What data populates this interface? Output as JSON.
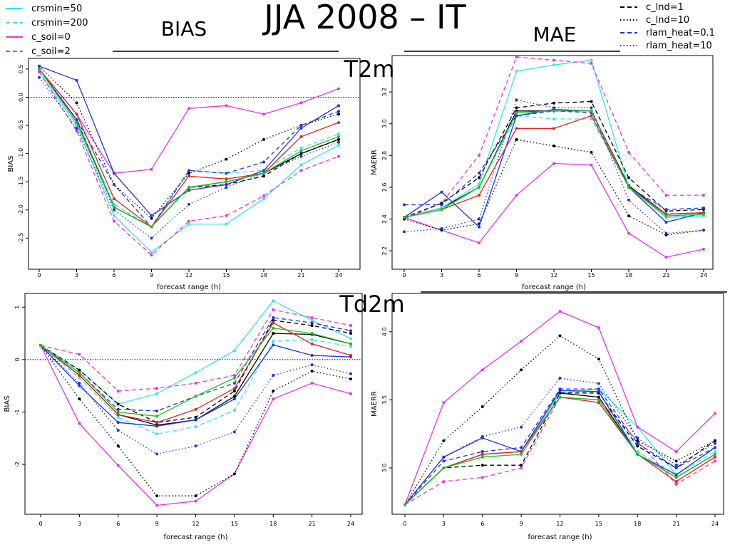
{
  "title": "JJA 2008 – IT",
  "headers": {
    "bias": "BIAS",
    "mae": "MAE"
  },
  "row_labels": [
    "T2m",
    "Td2m"
  ],
  "legend": [
    {
      "name": "crsmin=50",
      "color": "#33e6e6",
      "dash": "solid"
    },
    {
      "name": "crsmin=200",
      "color": "#33e6e6",
      "dash": "dashed"
    },
    {
      "name": "c_soil=0",
      "color": "#e633e6",
      "dash": "solid"
    },
    {
      "name": "c_soil=2",
      "color": "#e633e6",
      "dash": "dashed"
    },
    {
      "name": "c_lnd=1",
      "color": "#000000",
      "dash": "dashed"
    },
    {
      "name": "c_lnd=10",
      "color": "#000000",
      "dash": "dotted"
    },
    {
      "name": "rlam_heat=0.1",
      "color": "#1a33e6",
      "dash": "dashed"
    },
    {
      "name": "rlam_heat=10",
      "color": "#1a33e6",
      "dash": "dotted"
    }
  ],
  "chart_data": [
    {
      "type": "line",
      "xlabel": "forecast range (h)",
      "ylabel": "BIAS",
      "categories": [
        "0",
        "3",
        "6",
        "9",
        "12",
        "15",
        "18",
        "21",
        "24"
      ],
      "ylim": [
        -2.95,
        0.65
      ],
      "yticks": [
        0.5,
        {
          "value": 0,
          "label": "0.0"
        },
        -0.5,
        {
          "value": -1,
          "label": "-1.0"
        },
        -1.5,
        {
          "value": -2,
          "label": "-2.0"
        },
        -2.5
      ],
      "hline": 0,
      "series": [
        {
          "color": "#000000",
          "dash": "solid",
          "values": [
            0.5,
            -0.4,
            -1.95,
            -2.3,
            -1.6,
            -1.5,
            -1.35,
            -1.0,
            -0.75
          ]
        },
        {
          "color": "#33e6e6",
          "dash": "solid",
          "values": [
            0.45,
            -0.5,
            -2.1,
            -2.75,
            -2.25,
            -2.25,
            -1.8,
            -1.2,
            -0.85
          ]
        },
        {
          "color": "#33e6e6",
          "dash": "dashed",
          "values": [
            0.5,
            -0.4,
            -1.9,
            -2.3,
            -1.3,
            -1.35,
            -1.3,
            -0.9,
            -0.65
          ]
        },
        {
          "color": "#e633e6",
          "dash": "solid",
          "values": [
            0.5,
            -0.3,
            -1.35,
            -1.28,
            -0.2,
            -0.15,
            -0.3,
            -0.1,
            0.15
          ]
        },
        {
          "color": "#e633e6",
          "dash": "dashed",
          "values": [
            0.45,
            -0.6,
            -2.2,
            -2.8,
            -2.2,
            -2.1,
            -1.75,
            -1.3,
            -1.05
          ]
        },
        {
          "color": "#000000",
          "dash": "dashed",
          "values": [
            0.5,
            -0.45,
            -1.95,
            -2.3,
            -1.6,
            -1.55,
            -1.4,
            -1.0,
            -0.75
          ]
        },
        {
          "color": "#000000",
          "dash": "dotted",
          "values": [
            0.55,
            -0.1,
            -1.55,
            -2.15,
            -1.35,
            -1.1,
            -0.75,
            -0.5,
            -0.3
          ]
        },
        {
          "color": "#1a33e6",
          "dash": "dashed",
          "values": [
            0.5,
            -0.4,
            -1.55,
            -2.3,
            -1.3,
            -1.35,
            -1.15,
            -0.5,
            -0.25
          ]
        },
        {
          "color": "#1a33e6",
          "dash": "dotted",
          "values": [
            0.35,
            -0.55,
            -2.0,
            -2.5,
            -1.9,
            -1.6,
            -1.35,
            -1.05,
            -0.8
          ]
        },
        {
          "color": "#1a33e6",
          "dash": "solid",
          "values": [
            0.55,
            0.3,
            -1.35,
            -2.1,
            -1.65,
            -1.55,
            -1.3,
            -0.55,
            -0.15
          ]
        },
        {
          "color": "#e62020",
          "dash": "solid",
          "values": [
            0.5,
            -0.3,
            -1.8,
            -2.3,
            -1.4,
            -1.45,
            -1.35,
            -0.7,
            -0.45
          ]
        },
        {
          "color": "#20c020",
          "dash": "solid",
          "values": [
            0.5,
            -0.45,
            -1.95,
            -2.3,
            -1.6,
            -1.5,
            -1.35,
            -0.95,
            -0.7
          ]
        }
      ]
    },
    {
      "type": "line",
      "xlabel": "forecast range (h)",
      "ylabel": "MAERR",
      "categories": [
        "0",
        "3",
        "6",
        "9",
        "12",
        "15",
        "18",
        "21",
        "24"
      ],
      "ylim": [
        2.12,
        3.42
      ],
      "yticks": [
        2.2,
        2.4,
        2.6,
        2.8,
        {
          "value": 3,
          "label": "3.0"
        },
        3.2
      ],
      "series": [
        {
          "color": "#000000",
          "dash": "solid",
          "values": [
            2.41,
            2.47,
            2.6,
            3.08,
            3.08,
            3.08,
            2.61,
            2.43,
            2.44
          ]
        },
        {
          "color": "#33e6e6",
          "dash": "solid",
          "values": [
            2.41,
            2.47,
            2.62,
            3.33,
            3.37,
            3.4,
            2.6,
            2.41,
            2.42
          ]
        },
        {
          "color": "#33e6e6",
          "dash": "dashed",
          "values": [
            2.41,
            2.46,
            2.6,
            3.05,
            3.03,
            3.03,
            2.6,
            2.42,
            2.42
          ]
        },
        {
          "color": "#e633e6",
          "dash": "solid",
          "values": [
            2.41,
            2.33,
            2.25,
            2.55,
            2.75,
            2.74,
            2.31,
            2.16,
            2.21
          ]
        },
        {
          "color": "#e633e6",
          "dash": "dashed",
          "values": [
            2.4,
            2.5,
            2.8,
            3.42,
            3.4,
            3.38,
            2.82,
            2.55,
            2.55
          ]
        },
        {
          "color": "#000000",
          "dash": "dashed",
          "values": [
            2.41,
            2.5,
            2.66,
            3.1,
            3.13,
            3.14,
            2.66,
            2.45,
            2.46
          ]
        },
        {
          "color": "#000000",
          "dash": "dotted",
          "values": [
            2.4,
            2.33,
            2.37,
            2.9,
            2.86,
            2.82,
            2.42,
            2.3,
            2.33
          ]
        },
        {
          "color": "#1a33e6",
          "dash": "dashed",
          "values": [
            2.49,
            2.49,
            2.69,
            3.05,
            3.08,
            3.07,
            2.6,
            2.46,
            2.47
          ]
        },
        {
          "color": "#1a33e6",
          "dash": "dotted",
          "values": [
            2.32,
            2.34,
            2.4,
            3.15,
            3.1,
            3.1,
            2.52,
            2.31,
            2.33
          ]
        },
        {
          "color": "#1a33e6",
          "dash": "solid",
          "values": [
            2.41,
            2.57,
            2.35,
            3.05,
            3.09,
            3.08,
            2.6,
            2.38,
            2.44
          ]
        },
        {
          "color": "#e62020",
          "dash": "solid",
          "values": [
            2.41,
            2.46,
            2.55,
            2.97,
            2.97,
            3.05,
            2.6,
            2.43,
            2.44
          ]
        },
        {
          "color": "#20c020",
          "dash": "solid",
          "values": [
            2.41,
            2.46,
            2.6,
            3.07,
            3.08,
            3.08,
            2.6,
            2.42,
            2.43
          ]
        }
      ]
    },
    {
      "type": "line",
      "xlabel": "forecast range (h)",
      "ylabel": "BIAS",
      "categories": [
        "0",
        "3",
        "6",
        "9",
        "12",
        "15",
        "18",
        "21",
        "24"
      ],
      "ylim": [
        -2.95,
        1.18
      ],
      "yticks": [
        -2,
        -1,
        0,
        1
      ],
      "hline": 0,
      "series": [
        {
          "color": "#000000",
          "dash": "solid",
          "values": [
            0.27,
            -0.3,
            -1.05,
            -1.25,
            -1.15,
            -0.7,
            0.5,
            0.48,
            0.3
          ]
        },
        {
          "color": "#33e6e6",
          "dash": "solid",
          "values": [
            0.27,
            -0.2,
            -0.85,
            -0.65,
            -0.25,
            0.17,
            1.12,
            0.75,
            0.4
          ]
        },
        {
          "color": "#33e6e6",
          "dash": "dashed",
          "values": [
            0.27,
            -0.35,
            -1.1,
            -1.42,
            -1.28,
            -0.97,
            0.35,
            0.38,
            0.25
          ]
        },
        {
          "color": "#e633e6",
          "dash": "solid",
          "values": [
            0.27,
            -1.22,
            -2.02,
            -2.78,
            -2.7,
            -2.18,
            -0.75,
            -0.45,
            -0.65
          ]
        },
        {
          "color": "#e633e6",
          "dash": "dashed",
          "values": [
            0.27,
            0.1,
            -0.6,
            -0.55,
            -0.45,
            -0.3,
            0.95,
            0.8,
            0.65
          ]
        },
        {
          "color": "#000000",
          "dash": "dashed",
          "values": [
            0.27,
            -0.2,
            -0.85,
            -1.2,
            -1.1,
            -0.6,
            0.75,
            0.65,
            0.5
          ]
        },
        {
          "color": "#000000",
          "dash": "dotted",
          "values": [
            0.27,
            -0.75,
            -1.65,
            -2.6,
            -2.6,
            -2.18,
            -0.6,
            -0.22,
            -0.37
          ]
        },
        {
          "color": "#1a33e6",
          "dash": "dashed",
          "values": [
            0.27,
            -0.25,
            -0.95,
            -0.98,
            -0.7,
            -0.45,
            0.8,
            0.7,
            0.55
          ]
        },
        {
          "color": "#1a33e6",
          "dash": "dotted",
          "values": [
            0.27,
            -0.45,
            -1.35,
            -1.8,
            -1.65,
            -1.38,
            -0.3,
            -0.1,
            -0.27
          ]
        },
        {
          "color": "#1a33e6",
          "dash": "solid",
          "values": [
            0.27,
            -0.5,
            -1.2,
            -1.27,
            -1.15,
            -0.75,
            0.28,
            0.08,
            0.05
          ]
        },
        {
          "color": "#e62020",
          "dash": "solid",
          "values": [
            0.27,
            -0.3,
            -1.05,
            -1.2,
            -0.95,
            -0.55,
            0.7,
            0.3,
            0.08
          ]
        },
        {
          "color": "#20c020",
          "dash": "solid",
          "values": [
            0.27,
            -0.25,
            -1.0,
            -1.08,
            -0.7,
            -0.35,
            0.6,
            0.5,
            0.3
          ]
        }
      ]
    },
    {
      "type": "line",
      "xlabel": "forecast range (h)",
      "ylabel": "MAERR",
      "categories": [
        "0",
        "3",
        "6",
        "9",
        "12",
        "15",
        "18",
        "21",
        "24"
      ],
      "ylim": [
        2.66,
        4.25
      ],
      "yticks": [
        {
          "value": 3,
          "label": "3.0"
        },
        3.5,
        {
          "value": 4,
          "label": "4.0"
        }
      ],
      "series": [
        {
          "color": "#000000",
          "dash": "solid",
          "values": [
            2.73,
            3.0,
            3.1,
            3.12,
            3.55,
            3.52,
            3.1,
            2.93,
            3.1
          ]
        },
        {
          "color": "#33e6e6",
          "dash": "solid",
          "values": [
            2.73,
            3.0,
            3.1,
            3.12,
            3.55,
            3.58,
            3.3,
            2.95,
            3.15
          ]
        },
        {
          "color": "#33e6e6",
          "dash": "dashed",
          "values": [
            2.73,
            3.0,
            3.1,
            3.12,
            3.56,
            3.56,
            3.12,
            2.95,
            3.12
          ]
        },
        {
          "color": "#e633e6",
          "dash": "solid",
          "values": [
            2.73,
            3.48,
            3.72,
            3.93,
            4.15,
            4.03,
            3.3,
            3.12,
            3.4
          ]
        },
        {
          "color": "#e633e6",
          "dash": "dashed",
          "values": [
            2.73,
            2.9,
            2.93,
            3.0,
            3.52,
            3.5,
            3.2,
            2.88,
            3.05
          ]
        },
        {
          "color": "#000000",
          "dash": "dashed",
          "values": [
            2.73,
            3.0,
            3.02,
            3.02,
            3.55,
            3.55,
            3.16,
            3.0,
            3.2
          ]
        },
        {
          "color": "#000000",
          "dash": "dotted",
          "values": [
            2.73,
            3.2,
            3.45,
            3.72,
            3.97,
            3.8,
            3.2,
            3.05,
            3.2
          ]
        },
        {
          "color": "#1a33e6",
          "dash": "dashed",
          "values": [
            2.73,
            3.05,
            3.12,
            3.15,
            3.58,
            3.58,
            3.18,
            3.0,
            3.15
          ]
        },
        {
          "color": "#1a33e6",
          "dash": "dotted",
          "values": [
            2.73,
            3.08,
            3.23,
            3.3,
            3.66,
            3.62,
            3.22,
            3.02,
            3.18
          ]
        },
        {
          "color": "#1a33e6",
          "dash": "solid",
          "values": [
            2.73,
            3.08,
            3.22,
            3.12,
            3.57,
            3.56,
            3.1,
            2.95,
            3.15
          ]
        },
        {
          "color": "#e62020",
          "dash": "solid",
          "values": [
            2.73,
            3.0,
            3.1,
            3.12,
            3.52,
            3.48,
            3.1,
            2.9,
            3.08
          ]
        },
        {
          "color": "#20c020",
          "dash": "solid",
          "values": [
            2.73,
            3.0,
            3.08,
            3.1,
            3.52,
            3.5,
            3.1,
            2.93,
            3.1
          ]
        }
      ]
    }
  ]
}
